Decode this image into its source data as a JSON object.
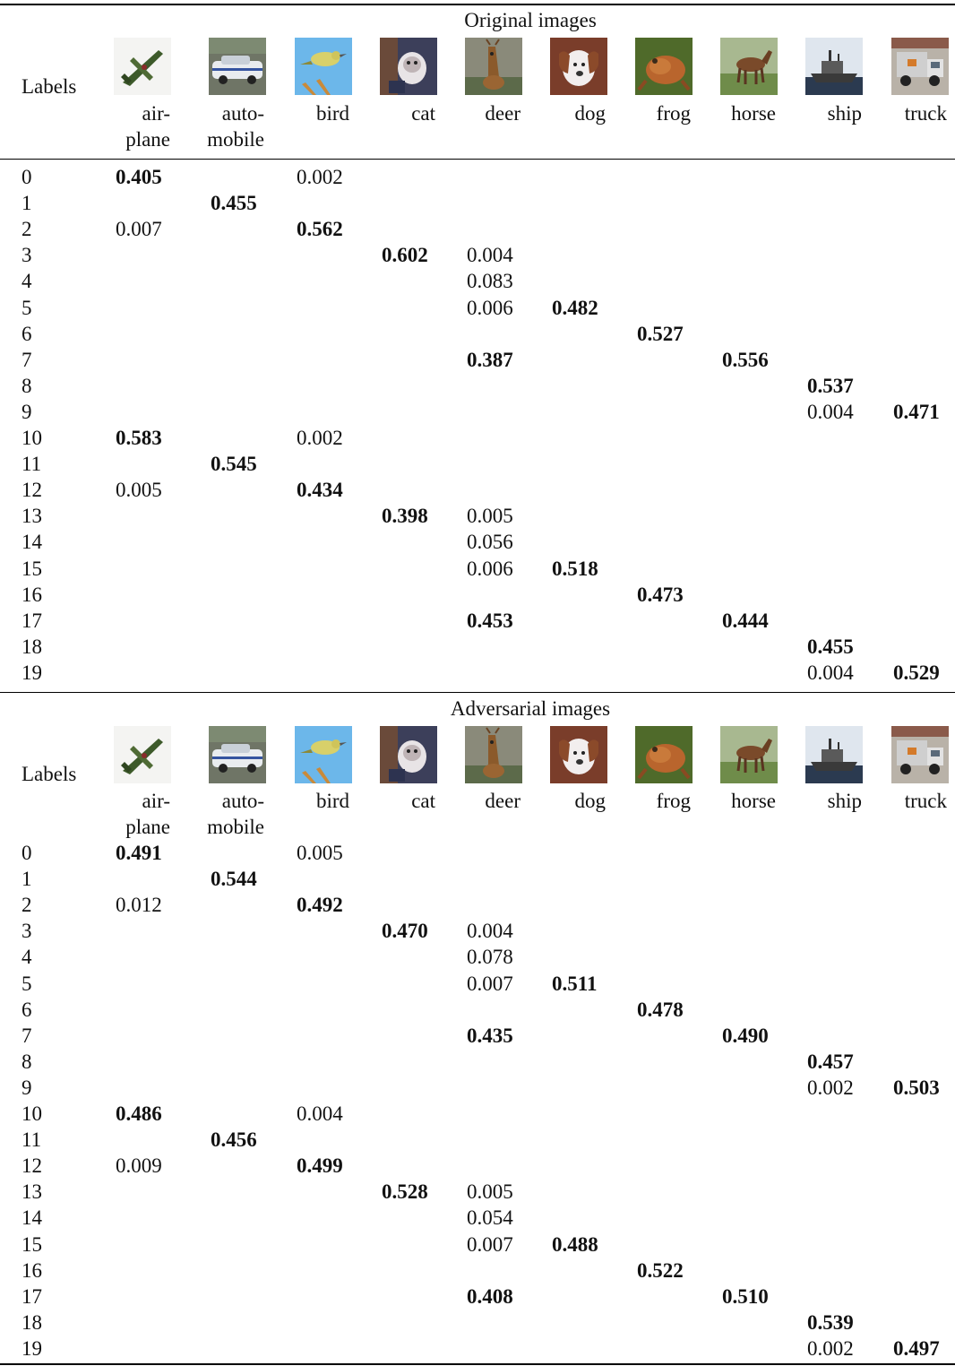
{
  "sections": [
    {
      "title": "Original images",
      "header_label": "Labels",
      "rows": [
        {
          "label": "0",
          "cells": [
            [
              "airplane",
              "0.405",
              true
            ],
            [
              "bird",
              "0.002",
              false
            ]
          ]
        },
        {
          "label": "1",
          "cells": [
            [
              "automobile",
              "0.455",
              true
            ]
          ]
        },
        {
          "label": "2",
          "cells": [
            [
              "airplane",
              "0.007",
              false
            ],
            [
              "bird",
              "0.562",
              true
            ]
          ]
        },
        {
          "label": "3",
          "cells": [
            [
              "cat",
              "0.602",
              true
            ],
            [
              "deer",
              "0.004",
              false
            ]
          ]
        },
        {
          "label": "4",
          "cells": [
            [
              "deer",
              "0.083",
              false
            ]
          ]
        },
        {
          "label": "5",
          "cells": [
            [
              "deer",
              "0.006",
              false
            ],
            [
              "dog",
              "0.482",
              true
            ]
          ]
        },
        {
          "label": "6",
          "cells": [
            [
              "frog",
              "0.527",
              true
            ]
          ]
        },
        {
          "label": "7",
          "cells": [
            [
              "deer",
              "0.387",
              true
            ],
            [
              "horse",
              "0.556",
              true
            ]
          ]
        },
        {
          "label": "8",
          "cells": [
            [
              "ship",
              "0.537",
              true
            ]
          ]
        },
        {
          "label": "9",
          "cells": [
            [
              "ship",
              "0.004",
              false
            ],
            [
              "truck",
              "0.471",
              true
            ]
          ]
        },
        {
          "label": "10",
          "cells": [
            [
              "airplane",
              "0.583",
              true
            ],
            [
              "bird",
              "0.002",
              false
            ]
          ]
        },
        {
          "label": "11",
          "cells": [
            [
              "automobile",
              "0.545",
              true
            ]
          ]
        },
        {
          "label": "12",
          "cells": [
            [
              "airplane",
              "0.005",
              false
            ],
            [
              "bird",
              "0.434",
              true
            ]
          ]
        },
        {
          "label": "13",
          "cells": [
            [
              "cat",
              "0.398",
              true
            ],
            [
              "deer",
              "0.005",
              false
            ]
          ]
        },
        {
          "label": "14",
          "cells": [
            [
              "deer",
              "0.056",
              false
            ]
          ]
        },
        {
          "label": "15",
          "cells": [
            [
              "deer",
              "0.006",
              false
            ],
            [
              "dog",
              "0.518",
              true
            ]
          ]
        },
        {
          "label": "16",
          "cells": [
            [
              "frog",
              "0.473",
              true
            ]
          ]
        },
        {
          "label": "17",
          "cells": [
            [
              "deer",
              "0.453",
              true
            ],
            [
              "horse",
              "0.444",
              true
            ]
          ]
        },
        {
          "label": "18",
          "cells": [
            [
              "ship",
              "0.455",
              true
            ]
          ]
        },
        {
          "label": "19",
          "cells": [
            [
              "ship",
              "0.004",
              false
            ],
            [
              "truck",
              "0.529",
              true
            ]
          ]
        }
      ]
    },
    {
      "title": "Adversarial images",
      "header_label": "Labels",
      "rows": [
        {
          "label": "0",
          "cells": [
            [
              "airplane",
              "0.491",
              true
            ],
            [
              "bird",
              "0.005",
              false
            ]
          ]
        },
        {
          "label": "1",
          "cells": [
            [
              "automobile",
              "0.544",
              true
            ]
          ]
        },
        {
          "label": "2",
          "cells": [
            [
              "airplane",
              "0.012",
              false
            ],
            [
              "bird",
              "0.492",
              true
            ]
          ]
        },
        {
          "label": "3",
          "cells": [
            [
              "cat",
              "0.470",
              true
            ],
            [
              "deer",
              "0.004",
              false
            ]
          ]
        },
        {
          "label": "4",
          "cells": [
            [
              "deer",
              "0.078",
              false
            ]
          ]
        },
        {
          "label": "5",
          "cells": [
            [
              "deer",
              "0.007",
              false
            ],
            [
              "dog",
              "0.511",
              true
            ]
          ]
        },
        {
          "label": "6",
          "cells": [
            [
              "frog",
              "0.478",
              true
            ]
          ]
        },
        {
          "label": "7",
          "cells": [
            [
              "deer",
              "0.435",
              true
            ],
            [
              "horse",
              "0.490",
              true
            ]
          ]
        },
        {
          "label": "8",
          "cells": [
            [
              "ship",
              "0.457",
              true
            ]
          ]
        },
        {
          "label": "9",
          "cells": [
            [
              "ship",
              "0.002",
              false
            ],
            [
              "truck",
              "0.503",
              true
            ]
          ]
        },
        {
          "label": "10",
          "cells": [
            [
              "airplane",
              "0.486",
              true
            ],
            [
              "bird",
              "0.004",
              false
            ]
          ]
        },
        {
          "label": "11",
          "cells": [
            [
              "automobile",
              "0.456",
              true
            ]
          ]
        },
        {
          "label": "12",
          "cells": [
            [
              "airplane",
              "0.009",
              false
            ],
            [
              "bird",
              "0.499",
              true
            ]
          ]
        },
        {
          "label": "13",
          "cells": [
            [
              "cat",
              "0.528",
              true
            ],
            [
              "deer",
              "0.005",
              false
            ]
          ]
        },
        {
          "label": "14",
          "cells": [
            [
              "deer",
              "0.054",
              false
            ]
          ]
        },
        {
          "label": "15",
          "cells": [
            [
              "deer",
              "0.007",
              false
            ],
            [
              "dog",
              "0.488",
              true
            ]
          ]
        },
        {
          "label": "16",
          "cells": [
            [
              "frog",
              "0.522",
              true
            ]
          ]
        },
        {
          "label": "17",
          "cells": [
            [
              "deer",
              "0.408",
              true
            ],
            [
              "horse",
              "0.510",
              true
            ]
          ]
        },
        {
          "label": "18",
          "cells": [
            [
              "ship",
              "0.539",
              true
            ]
          ]
        },
        {
          "label": "19",
          "cells": [
            [
              "ship",
              "0.002",
              false
            ],
            [
              "truck",
              "0.497",
              true
            ]
          ]
        }
      ]
    }
  ],
  "classes": [
    {
      "key": "airplane",
      "line1": "air-",
      "line2": "plane"
    },
    {
      "key": "automobile",
      "line1": "auto-",
      "line2": "mobile"
    },
    {
      "key": "bird",
      "line1": "bird",
      "line2": ""
    },
    {
      "key": "cat",
      "line1": "cat",
      "line2": ""
    },
    {
      "key": "deer",
      "line1": "deer",
      "line2": ""
    },
    {
      "key": "dog",
      "line1": "dog",
      "line2": ""
    },
    {
      "key": "frog",
      "line1": "frog",
      "line2": ""
    },
    {
      "key": "horse",
      "line1": "horse",
      "line2": ""
    },
    {
      "key": "ship",
      "line1": "ship",
      "line2": ""
    },
    {
      "key": "truck",
      "line1": "truck",
      "line2": ""
    }
  ]
}
